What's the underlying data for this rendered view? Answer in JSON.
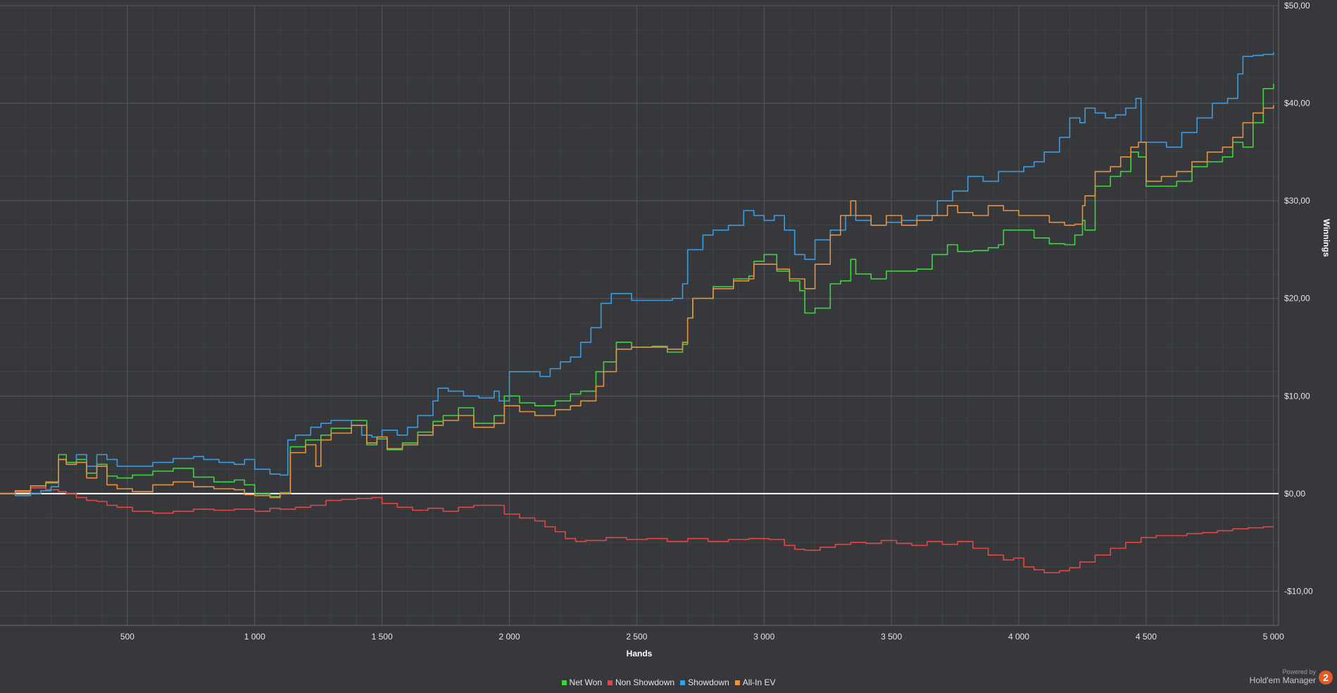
{
  "chart_data": {
    "type": "line",
    "xlabel": "Hands",
    "ylabel": "Winnings",
    "xlim": [
      0,
      5020
    ],
    "ylim": [
      -13.5,
      50
    ],
    "x_ticks": [
      500,
      1000,
      1500,
      2000,
      2500,
      3000,
      3500,
      4000,
      4500,
      5000
    ],
    "x_tick_labels": [
      "500",
      "1 000",
      "1 500",
      "2 000",
      "2 500",
      "3 000",
      "3 500",
      "4 000",
      "4 500",
      "5 000"
    ],
    "y_ticks": [
      -10,
      0,
      10,
      20,
      30,
      40,
      50
    ],
    "y_tick_labels": [
      "-$10,00",
      "$0,00",
      "$10,00",
      "$20,00",
      "$30,00",
      "$40,00",
      "$50,00"
    ],
    "grid": true,
    "legend_position": "bottom-center",
    "series": [
      {
        "name": "Net Won",
        "color": "#3fd43f",
        "x": [
          0,
          60,
          120,
          180,
          230,
          260,
          300,
          340,
          380,
          420,
          460,
          520,
          600,
          680,
          760,
          840,
          920,
          960,
          1000,
          1060,
          1100,
          1140,
          1200,
          1260,
          1300,
          1380,
          1440,
          1480,
          1520,
          1580,
          1640,
          1700,
          1740,
          1800,
          1860,
          1940,
          1980,
          2040,
          2100,
          2180,
          2240,
          2280,
          2340,
          2370,
          2420,
          2480,
          2560,
          2620,
          2680,
          2700,
          2720,
          2800,
          2880,
          2940,
          2960,
          3000,
          3050,
          3100,
          3140,
          3160,
          3200,
          3260,
          3300,
          3340,
          3360,
          3420,
          3480,
          3540,
          3600,
          3660,
          3720,
          3760,
          3820,
          3880,
          3920,
          3940,
          4000,
          4060,
          4120,
          4180,
          4220,
          4250,
          4260,
          4300,
          4360,
          4400,
          4440,
          4470,
          4500,
          4560,
          4620,
          4680,
          4740,
          4800,
          4840,
          4880,
          4920,
          4960,
          5000
        ],
        "y": [
          0,
          0.1,
          0.6,
          1.1,
          4.0,
          3.2,
          3.5,
          2.1,
          3.0,
          1.8,
          1.6,
          1.9,
          2.3,
          2.6,
          1.7,
          1.2,
          1.4,
          0.9,
          0,
          -0.3,
          0.1,
          4.8,
          5.5,
          6.0,
          6.7,
          7.5,
          5.0,
          5.6,
          4.5,
          5.2,
          6.3,
          7.4,
          8.0,
          8.8,
          7.2,
          8.0,
          10.0,
          9.3,
          9.0,
          9.5,
          10.2,
          10.5,
          12.5,
          13.5,
          15.5,
          15.0,
          15.1,
          14.5,
          15.3,
          18.0,
          20.0,
          21.2,
          22.0,
          22.3,
          23.8,
          24.5,
          22.8,
          21.8,
          20.8,
          18.5,
          19.0,
          21.5,
          21.8,
          24.0,
          22.5,
          22.0,
          22.8,
          22.8,
          23.0,
          24.5,
          25.5,
          24.8,
          24.9,
          25.2,
          25.5,
          27.0,
          27.0,
          26.2,
          25.6,
          25.5,
          26.5,
          28.0,
          27.0,
          31.5,
          32.5,
          33.0,
          35.0,
          34.5,
          31.5,
          31.5,
          32.0,
          33.5,
          34.0,
          34.5,
          36.0,
          35.5,
          38.0,
          41.5,
          42.0
        ]
      },
      {
        "name": "Non Showdown",
        "color": "#e04848",
        "x": [
          0,
          60,
          120,
          180,
          230,
          260,
          300,
          340,
          380,
          420,
          460,
          520,
          600,
          680,
          760,
          840,
          920,
          1000,
          1060,
          1100,
          1160,
          1220,
          1280,
          1340,
          1400,
          1460,
          1500,
          1560,
          1620,
          1680,
          1740,
          1800,
          1860,
          1920,
          1980,
          2040,
          2100,
          2140,
          2180,
          2220,
          2260,
          2300,
          2380,
          2460,
          2540,
          2620,
          2700,
          2780,
          2860,
          2940,
          3020,
          3080,
          3120,
          3160,
          3220,
          3280,
          3340,
          3400,
          3460,
          3520,
          3580,
          3640,
          3700,
          3760,
          3820,
          3880,
          3940,
          3980,
          4020,
          4060,
          4100,
          4160,
          4200,
          4240,
          4300,
          4360,
          4420,
          4480,
          4540,
          4600,
          4660,
          4720,
          4780,
          4840,
          4900,
          4960,
          5000
        ],
        "y": [
          0,
          0.2,
          0.6,
          0.4,
          0.2,
          0,
          -0.4,
          -0.7,
          -0.8,
          -1.2,
          -1.4,
          -1.8,
          -2.0,
          -1.8,
          -1.6,
          -1.7,
          -1.6,
          -1.8,
          -1.5,
          -1.6,
          -1.4,
          -1.2,
          -0.7,
          -0.6,
          -0.5,
          -0.4,
          -1.0,
          -1.4,
          -1.7,
          -1.5,
          -1.8,
          -1.4,
          -1.2,
          -1.2,
          -2.1,
          -2.5,
          -2.8,
          -3.4,
          -3.9,
          -4.6,
          -4.9,
          -4.8,
          -4.5,
          -4.7,
          -4.6,
          -4.9,
          -4.6,
          -4.9,
          -4.7,
          -4.6,
          -4.7,
          -5.3,
          -5.7,
          -5.8,
          -5.5,
          -5.2,
          -5.0,
          -5.1,
          -4.8,
          -5.1,
          -5.3,
          -4.9,
          -5.2,
          -4.9,
          -5.6,
          -6.3,
          -6.8,
          -6.6,
          -7.5,
          -7.8,
          -8.1,
          -7.9,
          -7.6,
          -7.0,
          -6.3,
          -5.6,
          -5.0,
          -4.5,
          -4.3,
          -4.3,
          -4.1,
          -4.0,
          -3.8,
          -3.6,
          -3.5,
          -3.4,
          -3.4
        ]
      },
      {
        "name": "Showdown",
        "color": "#3d9be0",
        "x": [
          0,
          60,
          120,
          160,
          200,
          230,
          260,
          300,
          340,
          380,
          420,
          460,
          520,
          600,
          680,
          760,
          800,
          860,
          920,
          960,
          1000,
          1060,
          1100,
          1130,
          1160,
          1220,
          1260,
          1300,
          1380,
          1420,
          1460,
          1500,
          1560,
          1600,
          1640,
          1700,
          1720,
          1760,
          1820,
          1880,
          1940,
          1960,
          2000,
          2060,
          2120,
          2160,
          2200,
          2240,
          2280,
          2320,
          2360,
          2400,
          2480,
          2560,
          2640,
          2680,
          2700,
          2760,
          2800,
          2860,
          2920,
          2960,
          3000,
          3040,
          3080,
          3120,
          3160,
          3200,
          3260,
          3320,
          3360,
          3420,
          3480,
          3540,
          3600,
          3680,
          3740,
          3800,
          3860,
          3920,
          3980,
          4020,
          4060,
          4100,
          4160,
          4200,
          4240,
          4260,
          4300,
          4340,
          4380,
          4420,
          4460,
          4480,
          4500,
          4580,
          4640,
          4700,
          4760,
          4820,
          4860,
          4880,
          4920,
          4960,
          5000
        ],
        "y": [
          0,
          -0.2,
          0,
          0.3,
          0.7,
          3.5,
          3.0,
          4.0,
          2.8,
          4.0,
          3.5,
          2.8,
          2.8,
          3.2,
          3.6,
          3.8,
          3.5,
          3.2,
          3.0,
          3.5,
          2.5,
          2.0,
          1.9,
          5.5,
          6.0,
          6.8,
          7.2,
          7.5,
          7.0,
          6.0,
          5.8,
          6.5,
          6.0,
          6.8,
          8.0,
          9.5,
          10.8,
          10.5,
          10.0,
          9.8,
          10.5,
          9.5,
          12.5,
          12.5,
          12.0,
          12.8,
          13.5,
          14.0,
          15.5,
          17.0,
          19.5,
          20.5,
          19.8,
          19.8,
          20.0,
          21.5,
          25.0,
          26.5,
          27.0,
          27.5,
          29.0,
          28.5,
          28.0,
          28.5,
          27.0,
          24.5,
          24.0,
          26.0,
          27.0,
          28.5,
          28.0,
          27.5,
          27.8,
          28.0,
          28.5,
          30.0,
          31.0,
          32.5,
          32.0,
          33.0,
          33.0,
          33.5,
          34.0,
          35.0,
          36.5,
          38.5,
          38.0,
          39.5,
          39.0,
          38.5,
          38.8,
          39.5,
          40.5,
          36.0,
          36.0,
          35.5,
          37.0,
          38.5,
          40.0,
          40.5,
          43.0,
          44.8,
          44.9,
          45.0,
          45.2
        ]
      },
      {
        "name": "All-In EV",
        "color": "#e8913f",
        "x": [
          0,
          60,
          120,
          180,
          230,
          260,
          300,
          340,
          380,
          420,
          460,
          520,
          600,
          680,
          760,
          840,
          920,
          960,
          1000,
          1060,
          1100,
          1140,
          1200,
          1240,
          1260,
          1300,
          1380,
          1440,
          1480,
          1520,
          1580,
          1640,
          1700,
          1740,
          1800,
          1860,
          1940,
          1980,
          2040,
          2100,
          2180,
          2240,
          2280,
          2340,
          2370,
          2420,
          2480,
          2560,
          2620,
          2680,
          2700,
          2720,
          2800,
          2880,
          2940,
          2960,
          3000,
          3050,
          3100,
          3160,
          3200,
          3260,
          3300,
          3340,
          3360,
          3420,
          3480,
          3540,
          3600,
          3660,
          3720,
          3760,
          3820,
          3880,
          3940,
          4000,
          4060,
          4120,
          4180,
          4220,
          4250,
          4260,
          4300,
          4360,
          4400,
          4440,
          4470,
          4500,
          4560,
          4620,
          4680,
          4740,
          4800,
          4840,
          4880,
          4920,
          4960,
          5000
        ],
        "y": [
          0,
          0.3,
          0.8,
          1.2,
          3.5,
          3.0,
          3.2,
          1.6,
          2.8,
          0.9,
          0.5,
          0.2,
          0.9,
          1.2,
          0.7,
          0.5,
          0.4,
          -0.1,
          -0.2,
          -0.4,
          0.0,
          4.2,
          5.0,
          2.8,
          5.5,
          6.2,
          7.0,
          5.2,
          5.8,
          4.6,
          5.0,
          6.0,
          7.0,
          7.5,
          8.0,
          6.8,
          7.2,
          9.0,
          8.4,
          8.0,
          8.6,
          9.0,
          9.5,
          11.0,
          12.5,
          14.8,
          15.0,
          15.0,
          14.8,
          15.5,
          18.0,
          20.0,
          21.0,
          21.8,
          22.0,
          23.5,
          23.5,
          23.0,
          22.0,
          21.0,
          23.5,
          26.5,
          28.5,
          30.0,
          28.5,
          27.5,
          28.5,
          27.5,
          28.0,
          28.5,
          29.5,
          28.8,
          28.5,
          29.5,
          29.0,
          28.5,
          28.5,
          27.8,
          27.5,
          27.6,
          29.5,
          30.5,
          33.0,
          33.5,
          34.5,
          35.5,
          36.0,
          32.0,
          32.5,
          33.0,
          34.0,
          35.0,
          35.5,
          36.5,
          38.0,
          39.0,
          39.5,
          39.8
        ]
      }
    ]
  },
  "branding": {
    "powered_by": "Powered by",
    "name": "Hold'em Manager",
    "logo_text": "2",
    "logo_color": "#e8592a"
  }
}
